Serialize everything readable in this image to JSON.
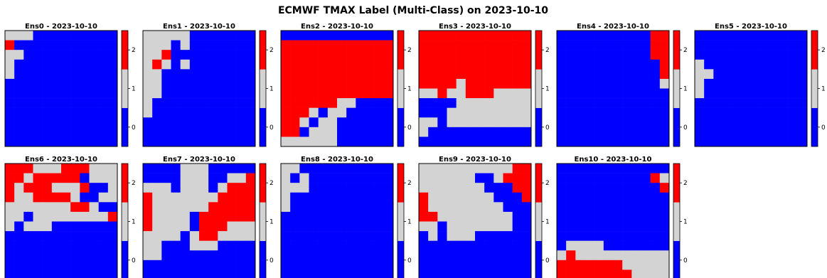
{
  "figure": {
    "title": "ECMWF TMAX Label (Multi-Class) on 2023-10-10"
  },
  "colors": {
    "0": "#0000ff",
    "1": "#d3d3d3",
    "2": "#ff0000"
  },
  "chart_data": {
    "type": "heatmap",
    "title": "ECMWF TMAX Label (Multi-Class) on 2023-10-10",
    "colorbar": {
      "ticks": [
        "0",
        "1",
        "2"
      ],
      "range": [
        -0.5,
        2.5
      ]
    },
    "grid_size": [
      12,
      12
    ],
    "panels": [
      {
        "name": "Ens0 - 2023-10-10",
        "grid": [
          "111000000000",
          "200000000000",
          "110000000000",
          "100000000000",
          "100000000000",
          "000000000000",
          "000000000000",
          "000000000000",
          "000000000000",
          "000000000000",
          "000000000000",
          "000000000000"
        ]
      },
      {
        "name": "Ens1 - 2023-10-10",
        "grid": [
          "111110000000",
          "111010000000",
          "112000000000",
          "121010000000",
          "110000000000",
          "110000000000",
          "110000000000",
          "100000000000",
          "100000000000",
          "000000000000",
          "000000000000",
          "000000000000"
        ]
      },
      {
        "name": "Ens2 - 2023-10-10",
        "grid": [
          "000000000000",
          "222222222222",
          "222222222222",
          "222222222222",
          "222222222222",
          "222222222222",
          "222222222222",
          "222222110000",
          "222101100000",
          "221011000000",
          "220111000000",
          "111111000000"
        ]
      },
      {
        "name": "Ens3 - 2023-10-10",
        "grid": [
          "222222222222",
          "222222222222",
          "222222222222",
          "222222222222",
          "222222222222",
          "222212222222",
          "112112221111",
          "000011111111",
          "000111111111",
          "110111111111",
          "100000000000",
          "000000000000"
        ]
      },
      {
        "name": "Ens4 - 2023-10-10",
        "grid": [
          "000000000022",
          "000000000022",
          "000000000022",
          "000000000002",
          "000000000002",
          "000000000001",
          "000000000000",
          "000000000000",
          "000000000000",
          "000000000000",
          "000000000000",
          "000000000000"
        ]
      },
      {
        "name": "Ens5 - 2023-10-10",
        "grid": [
          "000000000000",
          "000000000000",
          "000000000000",
          "100000000000",
          "110000000000",
          "100000000000",
          "100000000000",
          "000000000000",
          "000000000000",
          "000000000000",
          "000000000000",
          "000000000000"
        ]
      },
      {
        "name": "Ens6 - 2023-10-10",
        "grid": [
          "222111222111",
          "221222220111",
          "212221112001",
          "211222210011",
          "111111122100",
          "110111111112",
          "101110000000",
          "000000000000",
          "000000000000",
          "000000000000",
          "000000000000",
          "000000000000"
        ]
      },
      {
        "name": "Ens7 - 2023-10-10",
        "grid": [
          "000011100000",
          "000011100112",
          "111011101222",
          "211111112222",
          "211111122222",
          "211110222222",
          "211110222111",
          "111101221111",
          "110001110000",
          "110000000000",
          "000000000000",
          "000000000000"
        ]
      },
      {
        "name": "Ens8 - 2023-10-10",
        "grid": [
          "110000000000",
          "101000000000",
          "111000000000",
          "100000000000",
          "100000000000",
          "000000000000",
          "000000000000",
          "000000000000",
          "000000000000",
          "000000000000",
          "000000000000",
          "000000000000"
        ]
      },
      {
        "name": "Ens9 - 2023-10-10",
        "grid": [
          "111111111122",
          "111111001222",
          "111111100022",
          "211111110002",
          "211111111000",
          "221111111100",
          "110111111100",
          "010111000000",
          "000000000000",
          "000000000000",
          "000000000000",
          "000000000000"
        ]
      },
      {
        "name": "Ens10 - 2023-10-10",
        "grid": [
          "000000000000",
          "000000000021",
          "000000000002",
          "000000000000",
          "000000000000",
          "000000000000",
          "000000000000",
          "000000000000",
          "011110000000",
          "121111111111",
          "222222211111",
          "222222221111"
        ]
      }
    ]
  }
}
